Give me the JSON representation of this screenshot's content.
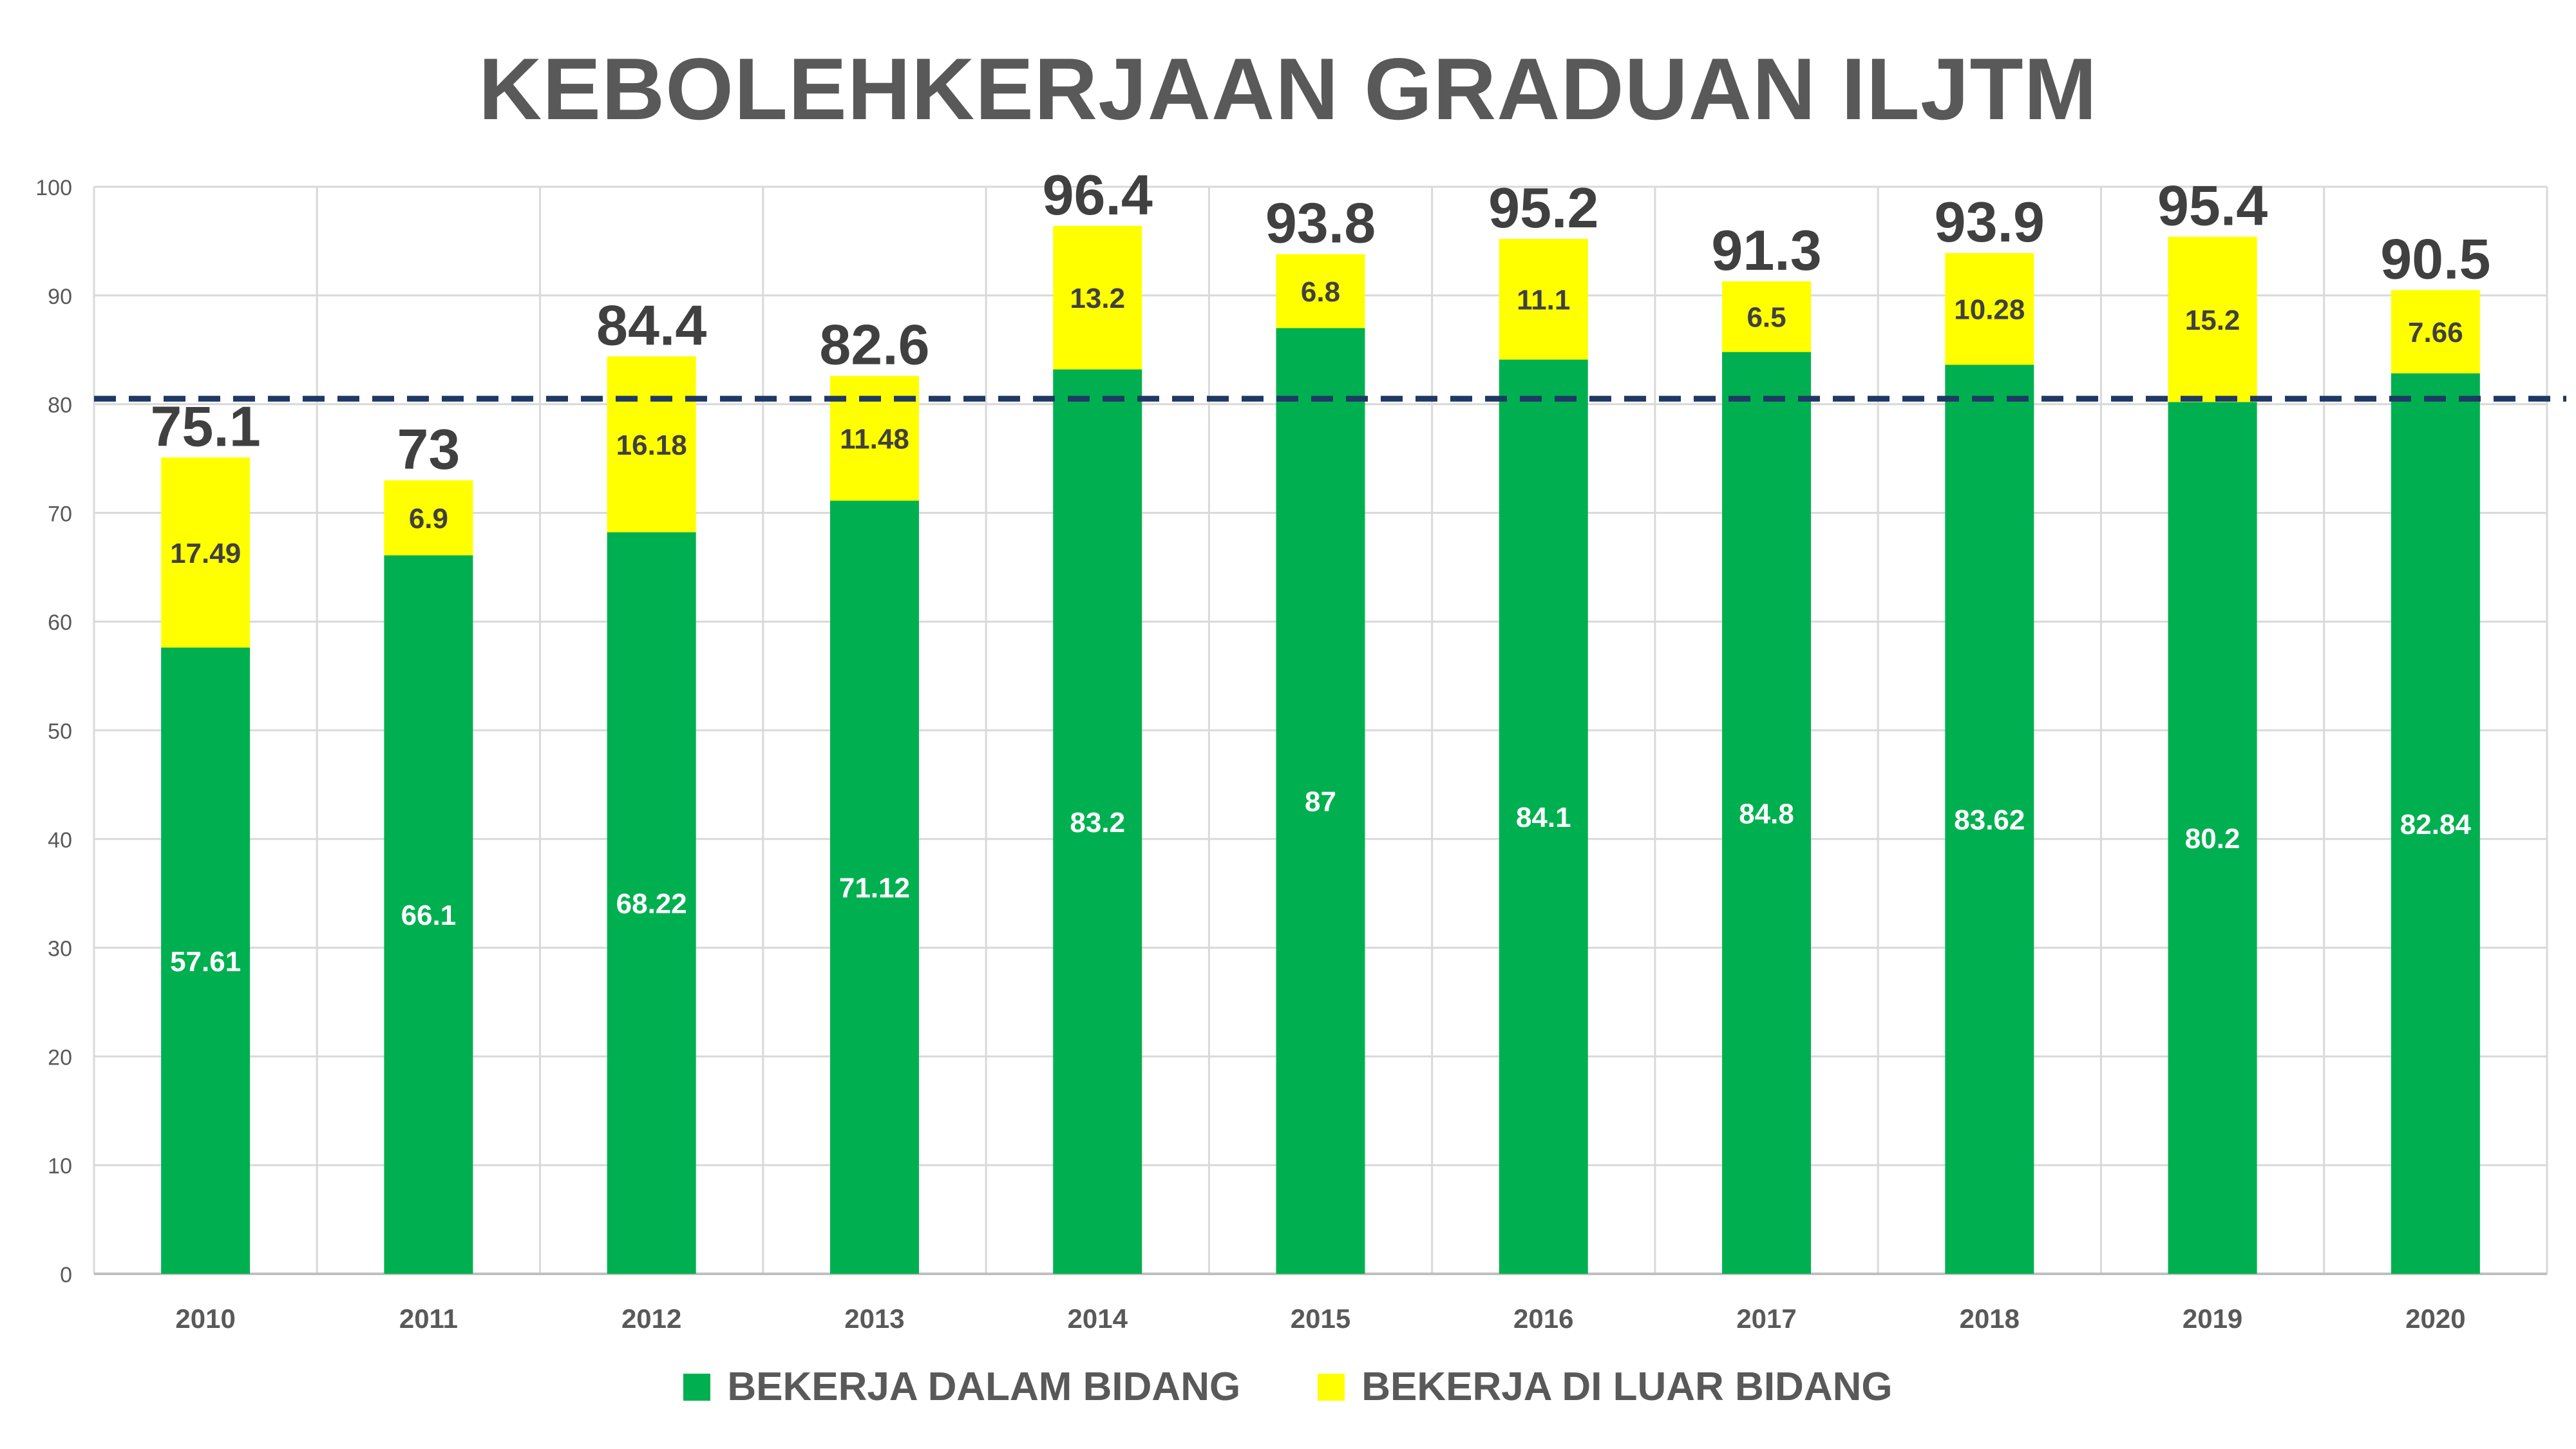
{
  "chart_data": {
    "type": "bar",
    "stacked": true,
    "title": "KEBOLEHKERJAAN GRADUAN ILJTM",
    "categories": [
      "2010",
      "2011",
      "2012",
      "2013",
      "2014",
      "2015",
      "2016",
      "2017",
      "2018",
      "2019",
      "2020"
    ],
    "series": [
      {
        "name": "BEKERJA DALAM BIDANG",
        "color": "#00B050",
        "values": [
          57.61,
          66.1,
          68.22,
          71.12,
          83.2,
          87,
          84.1,
          84.8,
          83.62,
          80.2,
          82.84
        ],
        "labels": [
          "57.61",
          "66.1",
          "68.22",
          "71.12",
          "83.2",
          "87",
          "84.1",
          "84.8",
          "83.62",
          "80.2",
          "82.84"
        ]
      },
      {
        "name": "BEKERJA DI LUAR BIDANG",
        "color": "#FFFF00",
        "values": [
          17.49,
          6.9,
          16.18,
          11.48,
          13.2,
          6.8,
          11.1,
          6.5,
          10.28,
          15.2,
          7.66
        ],
        "labels": [
          "17.49",
          "6.9",
          "16.18",
          "11.48",
          "13.2",
          "6.8",
          "11.1",
          "6.5",
          "10.28",
          "15.2",
          "7.66"
        ]
      }
    ],
    "totals": [
      75.1,
      73,
      84.4,
      82.6,
      96.4,
      93.8,
      95.2,
      91.3,
      93.9,
      95.4,
      90.5
    ],
    "total_labels": [
      "75.1",
      "73",
      "84.4",
      "82.6",
      "96.4",
      "93.8",
      "95.2",
      "91.3",
      "93.9",
      "95.4",
      "90.5"
    ],
    "reference_line": 80.5,
    "ylim": [
      0,
      100
    ],
    "yticks": [
      "0",
      "10",
      "20",
      "30",
      "40",
      "50",
      "60",
      "70",
      "80",
      "90",
      "100"
    ],
    "grid": true,
    "legend_position": "bottom"
  },
  "colors": {
    "reference_line": "#1F3864",
    "grid": "#D9D9D9",
    "axis_text": "#595959",
    "total_text": "#404040"
  }
}
